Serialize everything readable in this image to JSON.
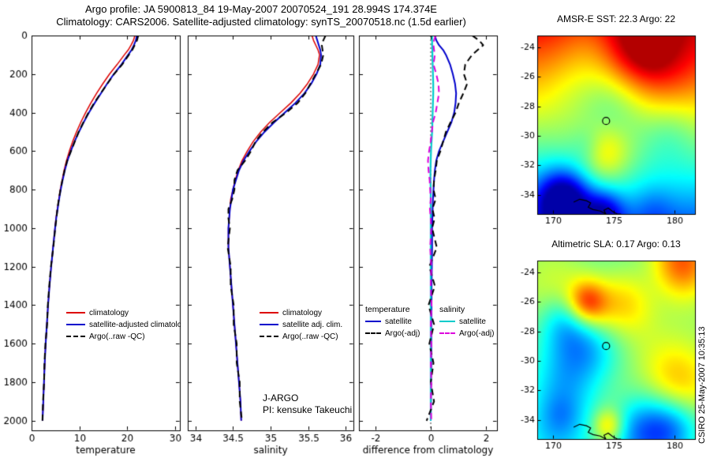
{
  "header": {
    "line1": "Argo profile: JA 5900813_84 19-May-2007 20070524_191 28.994S 174.374E",
    "line2": "Climatology: CARS2006. Satellite-adjusted climatology: synTS_20070518.nc (1.5d earlier)"
  },
  "colors": {
    "climatology": "#dd0000",
    "satellite_temp": "#0000cc",
    "argo": "#000000",
    "satellite_sal": "#00cccc",
    "argo_sal": "#dd00dd"
  },
  "legends": {
    "temp": [
      {
        "label": "climatology"
      },
      {
        "label": "satellite-adjusted climatology"
      },
      {
        "label": "Argo(..raw -QC)"
      }
    ],
    "sal": [
      {
        "label": "climatology"
      },
      {
        "label": "satellite adj. clim."
      },
      {
        "label": "Argo(..raw -QC)"
      }
    ],
    "diff": {
      "temp_header": "temperature",
      "sal_header": "salinity",
      "temp_items": [
        {
          "label": "satellite"
        },
        {
          "label": "Argo(-adj)"
        }
      ],
      "sal_items": [
        {
          "label": "satellite"
        },
        {
          "label": "Argo(-adj)"
        }
      ]
    }
  },
  "annotations": {
    "program": "J-ARGO",
    "pi": "PI: kensuke Takeuchi"
  },
  "footer": {
    "credit": "CSIRO 25-May-2007 10:35:13"
  },
  "coastline": [
    [
      171.7,
      -34.5
    ],
    [
      172.2,
      -34.3
    ],
    [
      172.75,
      -34.4
    ],
    [
      173.1,
      -34.55
    ],
    [
      172.9,
      -34.85
    ],
    [
      173.3,
      -35.0
    ],
    [
      173.9,
      -35.1
    ],
    [
      174.35,
      -35.3
    ],
    [
      174.2,
      -35.05
    ],
    [
      174.55,
      -34.9
    ],
    [
      174.95,
      -35.15
    ],
    [
      175.3,
      -35.3
    ],
    [
      175.6,
      -35.3
    ]
  ],
  "chart_data": [
    {
      "type": "line",
      "xlabel": "temperature",
      "ylabel": "",
      "xlim": [
        0,
        31
      ],
      "xticks": [
        0,
        10,
        20,
        30
      ],
      "ylim": [
        0,
        2050
      ],
      "yticks": [
        0,
        200,
        400,
        600,
        800,
        1000,
        1200,
        1400,
        1600,
        1800,
        2000
      ],
      "depths": [
        0,
        25,
        50,
        75,
        100,
        150,
        200,
        250,
        300,
        350,
        400,
        450,
        500,
        550,
        600,
        650,
        700,
        750,
        800,
        850,
        900,
        950,
        1000,
        1100,
        1200,
        1300,
        1400,
        1500,
        1600,
        1700,
        1800,
        1900,
        2000
      ],
      "series": [
        {
          "name": "climatology",
          "color": "#dd0000",
          "dash": false,
          "width": 1.5,
          "values": [
            21.6,
            21.3,
            20.8,
            20.2,
            19.4,
            17.9,
            16.3,
            14.9,
            13.6,
            12.4,
            11.3,
            10.3,
            9.4,
            8.6,
            7.9,
            7.3,
            6.8,
            6.4,
            6.0,
            5.7,
            5.4,
            5.1,
            4.9,
            4.5,
            4.1,
            3.75,
            3.45,
            3.2,
            2.95,
            2.75,
            2.6,
            2.45,
            2.3
          ]
        },
        {
          "name": "satellite-adjusted climatology",
          "color": "#0000cc",
          "dash": false,
          "width": 2,
          "values": [
            22.0,
            21.8,
            21.4,
            20.9,
            20.2,
            18.8,
            17.2,
            15.8,
            14.5,
            13.2,
            12.0,
            10.9,
            9.9,
            9.0,
            8.2,
            7.5,
            6.95,
            6.5,
            6.1,
            5.75,
            5.45,
            5.15,
            4.92,
            4.5,
            4.1,
            3.75,
            3.45,
            3.2,
            2.95,
            2.75,
            2.6,
            2.45,
            2.3
          ]
        },
        {
          "name": "Argo(..raw -QC)",
          "color": "#000000",
          "dash": true,
          "width": 2,
          "values": [
            22.3,
            22.05,
            21.55,
            21.05,
            20.35,
            18.95,
            17.25,
            15.85,
            14.45,
            13.1,
            11.9,
            10.85,
            9.85,
            9.05,
            8.25,
            7.45,
            6.9,
            6.45,
            6.05,
            5.7,
            5.4,
            5.2,
            4.95,
            4.55,
            4.05,
            3.7,
            3.4,
            3.25,
            2.9,
            2.7,
            2.62,
            2.4,
            2.28
          ]
        }
      ]
    },
    {
      "type": "line",
      "xlabel": "salinity",
      "ylabel": "",
      "xlim": [
        33.9,
        36.1
      ],
      "xticks": [
        34,
        34.5,
        35,
        35.5,
        36
      ],
      "ylim": [
        0,
        2050
      ],
      "yticks": [
        0,
        200,
        400,
        600,
        800,
        1000,
        1200,
        1400,
        1600,
        1800,
        2000
      ],
      "depths": [
        0,
        25,
        50,
        75,
        100,
        150,
        200,
        250,
        300,
        350,
        400,
        450,
        500,
        550,
        600,
        650,
        700,
        750,
        800,
        850,
        900,
        950,
        1000,
        1100,
        1200,
        1300,
        1400,
        1500,
        1600,
        1700,
        1800,
        1900,
        2000
      ],
      "series": [
        {
          "name": "climatology",
          "color": "#dd0000",
          "dash": false,
          "width": 1.5,
          "values": [
            35.55,
            35.57,
            35.6,
            35.63,
            35.65,
            35.63,
            35.57,
            35.49,
            35.39,
            35.27,
            35.13,
            34.99,
            34.87,
            34.77,
            34.69,
            34.62,
            34.57,
            34.53,
            34.5,
            34.47,
            34.46,
            34.45,
            34.44,
            34.44,
            34.46,
            34.48,
            34.5,
            34.52,
            34.54,
            34.56,
            34.58,
            34.6,
            34.61
          ]
        },
        {
          "name": "satellite adj. clim.",
          "color": "#0000cc",
          "dash": false,
          "width": 2,
          "values": [
            35.6,
            35.62,
            35.64,
            35.66,
            35.67,
            35.66,
            35.61,
            35.54,
            35.45,
            35.33,
            35.19,
            35.05,
            34.92,
            34.81,
            34.72,
            34.64,
            34.58,
            34.54,
            34.5,
            34.48,
            34.46,
            34.45,
            34.44,
            34.44,
            34.46,
            34.48,
            34.5,
            34.52,
            34.54,
            34.56,
            34.58,
            34.6,
            34.61
          ]
        },
        {
          "name": "Argo(..raw -QC)",
          "color": "#000000",
          "dash": true,
          "width": 2,
          "values": [
            35.73,
            35.7,
            35.68,
            35.69,
            35.7,
            35.67,
            35.6,
            35.53,
            35.46,
            35.36,
            35.21,
            35.03,
            34.9,
            34.8,
            34.74,
            34.66,
            34.56,
            34.52,
            34.52,
            34.49,
            34.44,
            34.44,
            34.46,
            34.43,
            34.47,
            34.47,
            34.51,
            34.51,
            34.55,
            34.55,
            34.59,
            34.59,
            34.62
          ]
        }
      ]
    },
    {
      "type": "line",
      "xlabel": "difference from climatology",
      "ylabel": "",
      "xlim": [
        -2.6,
        2.4
      ],
      "xticks": [
        -2,
        0,
        2
      ],
      "zero_line": true,
      "ylim": [
        0,
        2050
      ],
      "yticks": [
        0,
        200,
        400,
        600,
        800,
        1000,
        1200,
        1400,
        1600,
        1800,
        2000
      ],
      "depths": [
        0,
        25,
        50,
        75,
        100,
        150,
        200,
        250,
        300,
        350,
        400,
        450,
        500,
        550,
        600,
        650,
        700,
        750,
        800,
        850,
        900,
        950,
        1000,
        1100,
        1200,
        1300,
        1400,
        1500,
        1600,
        1700,
        1800,
        1900,
        2000
      ],
      "series": [
        {
          "name": "temperature satellite",
          "color": "#0000cc",
          "dash": false,
          "width": 2,
          "values": [
            0.15,
            0.2,
            0.3,
            0.45,
            0.55,
            0.7,
            0.8,
            0.88,
            0.92,
            0.9,
            0.85,
            0.75,
            0.6,
            0.45,
            0.3,
            0.2,
            0.15,
            0.12,
            0.1,
            0.08,
            0.07,
            0.06,
            0.05,
            0.05,
            0.04,
            0.03,
            0.03,
            0.02,
            0.02,
            0.02,
            0.01,
            0.01,
            0.0
          ]
        },
        {
          "name": "salinity satellite",
          "color": "#00cccc",
          "dash": false,
          "width": 2.2,
          "values": [
            0.05,
            0.05,
            0.05,
            0.06,
            0.06,
            0.07,
            0.08,
            0.09,
            0.09,
            0.08,
            0.07,
            0.06,
            0.05,
            0.03,
            0.01,
            0.0,
            -0.01,
            -0.01,
            0.0,
            0.0,
            0.0,
            0.0,
            0.0,
            0.0,
            0.0,
            0.0,
            0.0,
            0.0,
            0.0,
            0.0,
            0.0,
            0.0,
            0.0
          ]
        },
        {
          "name": "temperature Argo(-adj)",
          "color": "#000000",
          "dash": true,
          "width": 2,
          "values": [
            1.5,
            1.75,
            1.9,
            1.7,
            1.5,
            1.25,
            1.2,
            1.32,
            1.18,
            1.02,
            0.9,
            0.72,
            0.55,
            0.45,
            0.35,
            0.22,
            0.18,
            0.12,
            0.1,
            0.18,
            0.06,
            0.14,
            0.05,
            0.22,
            -0.05,
            0.15,
            -0.08,
            0.12,
            -0.05,
            0.1,
            0.0,
            0.12,
            -0.15
          ]
        },
        {
          "name": "salinity Argo(-adj)",
          "color": "#dd00dd",
          "dash": true,
          "width": 2,
          "values": [
            0.18,
            0.12,
            0.1,
            0.12,
            0.15,
            0.1,
            0.2,
            0.28,
            0.3,
            0.24,
            0.18,
            0.08,
            0.04,
            0.0,
            -0.06,
            -0.1,
            -0.08,
            -0.04,
            -0.02,
            0.0,
            -0.03,
            0.0,
            0.02,
            -0.02,
            0.02,
            0.0,
            0.03,
            0.0,
            0.02,
            0.0,
            0.02,
            0.0,
            0.02
          ]
        }
      ]
    },
    {
      "type": "heatmap",
      "title": "AMSR-E SST: 22.3 Argo: 22",
      "field": "sst",
      "colormap": "jet",
      "lon_range": [
        168.7,
        181.7
      ],
      "lat_range": [
        -35.3,
        -23.2
      ],
      "lon_ticks": [
        170,
        175,
        180
      ],
      "lat_ticks": [
        -24,
        -26,
        -28,
        -30,
        -32,
        -34
      ],
      "marker": {
        "lon": 174.374,
        "lat": -28.994
      }
    },
    {
      "type": "heatmap",
      "title": "Altimetric SLA: 0.17 Argo: 0.13",
      "field": "sla",
      "colormap": "jet",
      "lon_range": [
        168.7,
        181.7
      ],
      "lat_range": [
        -35.3,
        -23.2
      ],
      "lon_ticks": [
        170,
        175,
        180
      ],
      "lat_ticks": [
        -24,
        -26,
        -28,
        -30,
        -32,
        -34
      ],
      "marker": {
        "lon": 174.374,
        "lat": -28.994
      }
    }
  ]
}
